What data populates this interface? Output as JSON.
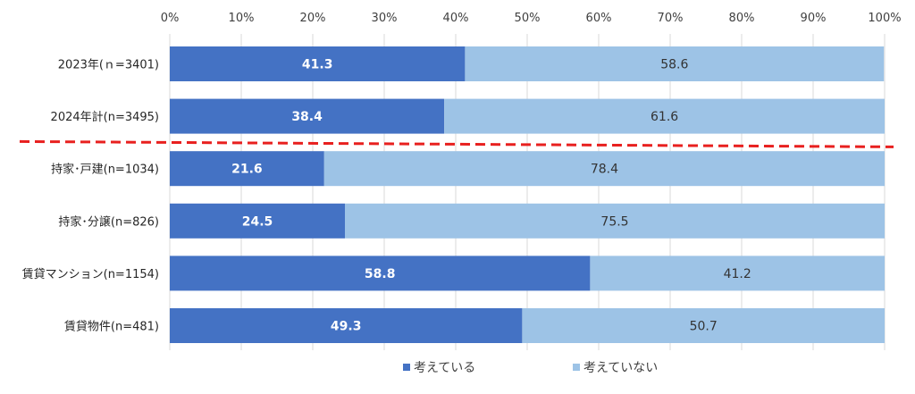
{
  "chart_data": {
    "type": "bar",
    "orientation": "horizontal",
    "stacked": true,
    "categories": [
      "2023年(ｎ=3401)",
      "2024年計(n=3495)",
      "持家･戸建(n=1034)",
      "持家･分譲(n=826)",
      "賃貸マンション(n=1154)",
      "賃貸物件(n=481)"
    ],
    "series": [
      {
        "name": "考えている",
        "values": [
          41.3,
          38.4,
          21.6,
          24.5,
          58.8,
          49.3
        ],
        "color": "#4472c4",
        "label_color": "#ffffff"
      },
      {
        "name": "考えていない",
        "values": [
          58.6,
          61.6,
          78.4,
          75.5,
          41.2,
          50.7
        ],
        "color": "#9dc3e6",
        "label_color": "#333333"
      }
    ],
    "x_ticks": [
      "0%",
      "10%",
      "20%",
      "30%",
      "40%",
      "50%",
      "60%",
      "70%",
      "80%",
      "90%",
      "100%"
    ],
    "xlim": [
      0,
      100
    ],
    "axis_position": "top",
    "grid": true,
    "legend_position": "bottom",
    "divider": {
      "after_category_index": 1,
      "color": "#e8201f",
      "style": "dashed"
    },
    "title": "",
    "xlabel": "",
    "ylabel": ""
  }
}
